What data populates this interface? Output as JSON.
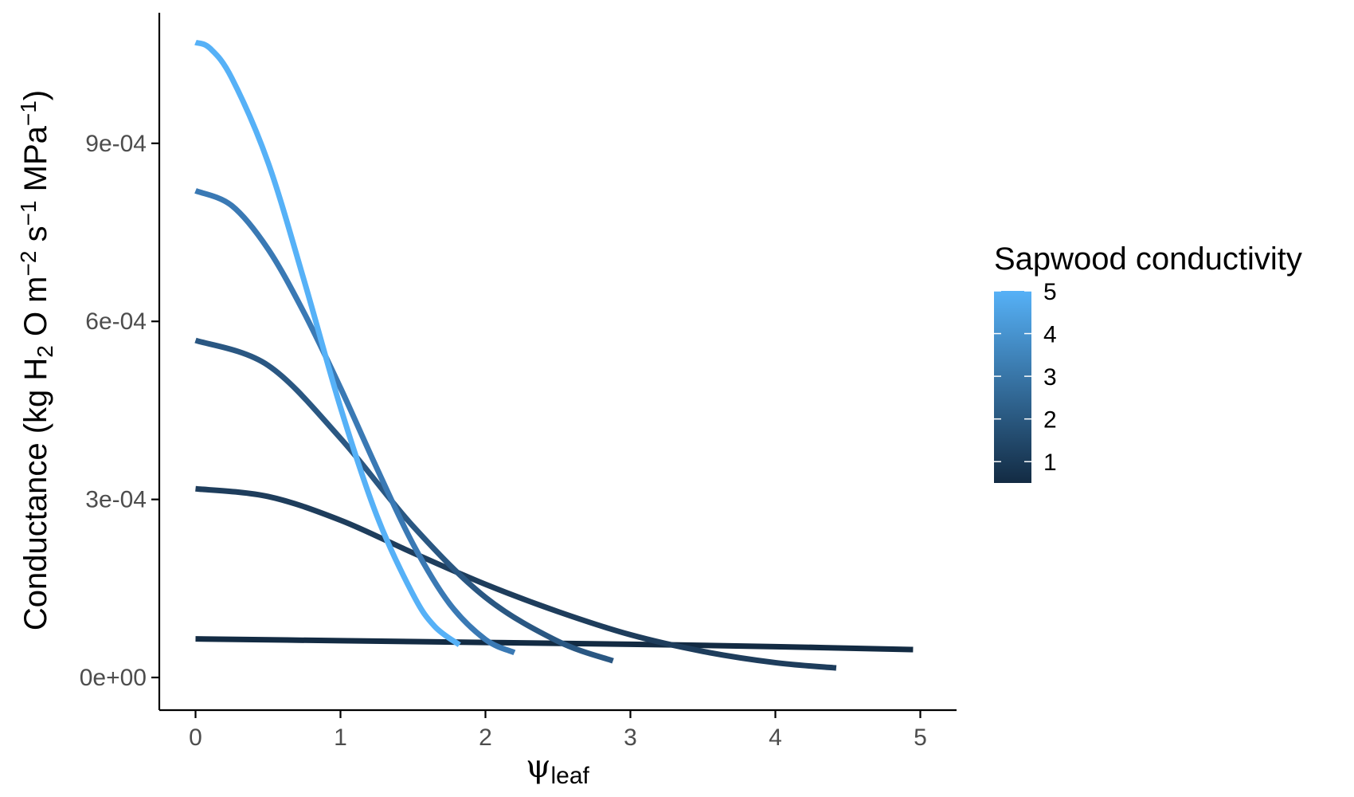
{
  "chart_data": {
    "type": "line",
    "xlabel": {
      "base": "ψ",
      "subscript": "leaf"
    },
    "ylabel": {
      "parts": [
        {
          "t": "Conductance (kg H",
          "s": "normal"
        },
        {
          "t": "2",
          "s": "sub"
        },
        {
          "t": " O m",
          "s": "normal"
        },
        {
          "t": "−2",
          "s": "sup"
        },
        {
          "t": " s",
          "s": "normal"
        },
        {
          "t": "−1",
          "s": "sup"
        },
        {
          "t": " MPa",
          "s": "normal"
        },
        {
          "t": "−1",
          "s": "sup"
        },
        {
          "t": ")",
          "s": "normal"
        }
      ]
    },
    "xlim": [
      -0.25,
      5.25
    ],
    "ylim": [
      -5.5e-05,
      0.00112
    ],
    "xticks": [
      0,
      1,
      2,
      3,
      4,
      5
    ],
    "xtick_labels": [
      "0",
      "1",
      "2",
      "3",
      "4",
      "5"
    ],
    "yticks": [
      0,
      0.0003,
      0.0006,
      0.0009
    ],
    "ytick_labels": [
      "0e+00",
      "3e-04",
      "6e-04",
      "9e-04"
    ],
    "grid": false,
    "legend": {
      "title": "Sapwood conductivity",
      "position": "right",
      "type": "colorbar",
      "range": [
        0.5,
        5
      ],
      "ticks": [
        "1",
        "2",
        "3",
        "4",
        "5"
      ],
      "colors": [
        "#132B43",
        "#56B1F7"
      ]
    },
    "series": [
      {
        "sapwood": 0.5,
        "color": "#132B43",
        "x": [
          0,
          1,
          2,
          3,
          4,
          4.95
        ],
        "y": [
          6.5e-05,
          6.2e-05,
          5.9e-05,
          5.6e-05,
          5.2e-05,
          4.7e-05
        ]
      },
      {
        "sapwood": 1.5,
        "color": "#1e3d5c",
        "x": [
          0,
          0.5,
          1,
          1.5,
          2,
          2.5,
          3,
          3.5,
          4,
          4.42
        ],
        "y": [
          0.000318,
          0.000305,
          0.000265,
          0.00021,
          0.000157,
          0.000111,
          7.2e-05,
          4.4e-05,
          2.5e-05,
          1.6e-05
        ]
      },
      {
        "sapwood": 2.5,
        "color": "#2a5782",
        "x": [
          0,
          0.5,
          1,
          1.5,
          2,
          2.5,
          2.88
        ],
        "y": [
          0.000568,
          0.000526,
          0.000403,
          0.000255,
          0.000135,
          6.1e-05,
          2.8e-05
        ]
      },
      {
        "sapwood": 3.7,
        "color": "#3a79b4",
        "x": [
          0,
          0.25,
          0.5,
          0.75,
          1,
          1.25,
          1.5,
          1.75,
          2,
          2.2
        ],
        "y": [
          0.00082,
          0.000795,
          0.000722,
          0.000614,
          0.000488,
          0.000353,
          0.000225,
          0.000125,
          6.4e-05,
          4.2e-05
        ]
      },
      {
        "sapwood": 5,
        "color": "#56B1F7",
        "x": [
          0,
          0.1,
          0.25,
          0.5,
          0.75,
          1,
          1.25,
          1.5,
          1.65,
          1.82
        ],
        "y": [
          0.00107,
          0.00106,
          0.00101,
          0.000868,
          0.000668,
          0.000455,
          0.000273,
          0.00014,
          8.6e-05,
          5.5e-05
        ]
      }
    ]
  }
}
